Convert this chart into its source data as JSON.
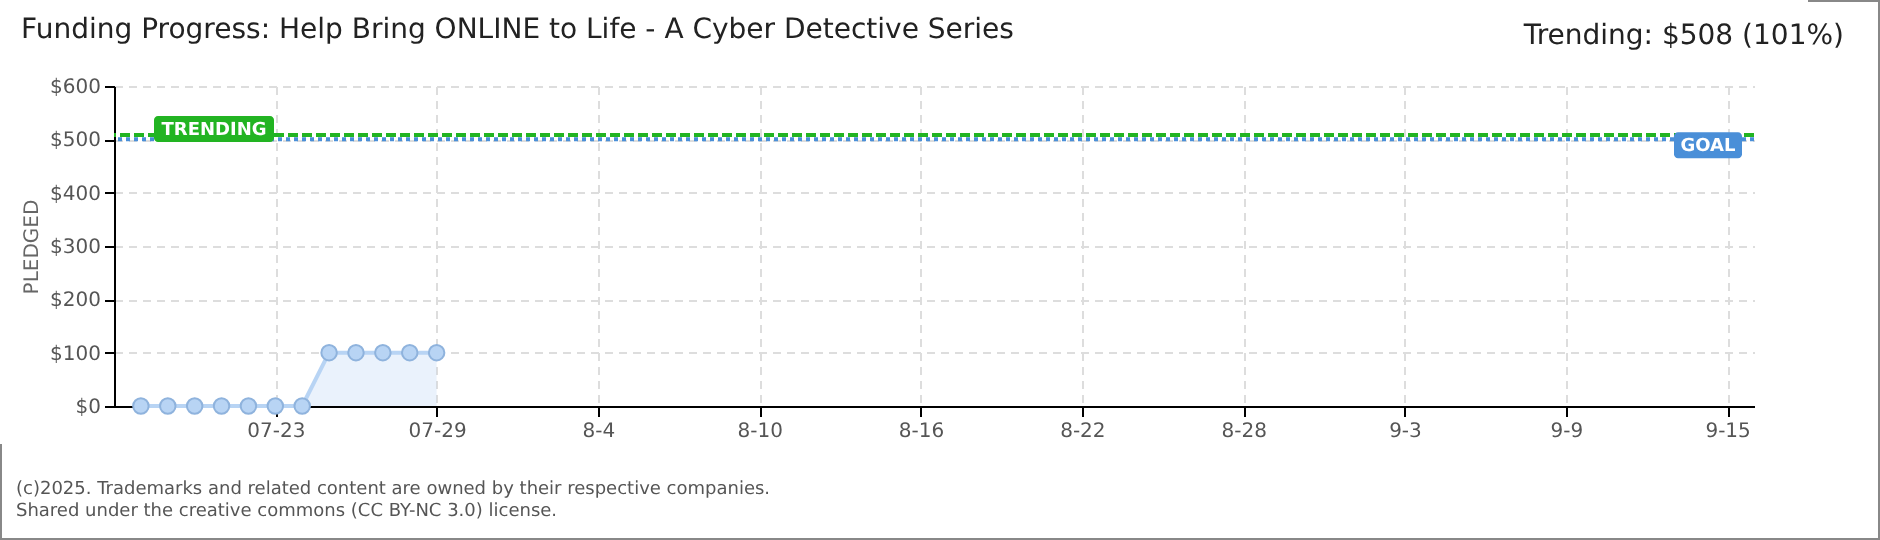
{
  "chart_data": {
    "type": "area",
    "title": "Funding Progress: Help Bring ONLINE to Life - A Cyber Detective Series",
    "ylabel": "PLEDGED",
    "annotations": [
      "Trending: $508 (101%)",
      "(c)2025. Trademarks and related content are owned by their respective companies.",
      "Shared under the creative commons (CC BY-NC 3.0) license."
    ],
    "x": [
      "--07-18",
      "--07-19",
      "--07-20",
      "--07-21",
      "--07-22",
      "--07-23",
      "--07-24",
      "--07-25",
      "--07-26",
      "--07-27",
      "--07-28",
      "--07-29"
    ],
    "series": [
      {
        "color": "#b8d4f4",
        "values": [
          0,
          0,
          0,
          0,
          0,
          0,
          0,
          100,
          100,
          100,
          100,
          100
        ]
      }
    ],
    "xlim": [
      "--07-17",
      "--09-16"
    ],
    "xticks": [
      {
        "value": "--07-23",
        "label": "07-23"
      },
      {
        "value": "--07-29",
        "label": "07-29"
      },
      {
        "value": "--08-04",
        "label": "8-4"
      },
      {
        "value": "--08-10",
        "label": "8-10"
      },
      {
        "value": "--08-16",
        "label": "8-16"
      },
      {
        "value": "--08-22",
        "label": "8-22"
      },
      {
        "value": "--08-28",
        "label": "8-28"
      },
      {
        "value": "--09-03",
        "label": "9-3"
      },
      {
        "value": "--09-09",
        "label": "9-9"
      },
      {
        "value": "--09-15",
        "label": "9-15"
      }
    ],
    "ylim": [
      0,
      600
    ],
    "yticks": [
      {
        "value": 0,
        "label": "$0"
      },
      {
        "value": 100,
        "label": "$100"
      },
      {
        "value": 200,
        "label": "$200"
      },
      {
        "value": 300,
        "label": "$300"
      },
      {
        "value": 400,
        "label": "$400"
      },
      {
        "value": 500,
        "label": "$500"
      },
      {
        "value": 600,
        "label": "$600"
      }
    ],
    "ref_lines": [
      {
        "axis": "y",
        "value": 508,
        "label": "TRENDING",
        "color": "#22b422",
        "line_style": "dashed"
      },
      {
        "axis": "y",
        "value": 500,
        "label": "GOAL",
        "color": "#4a8fd8",
        "line_style": "dotted"
      }
    ],
    "grid": true,
    "marker": "circle"
  }
}
